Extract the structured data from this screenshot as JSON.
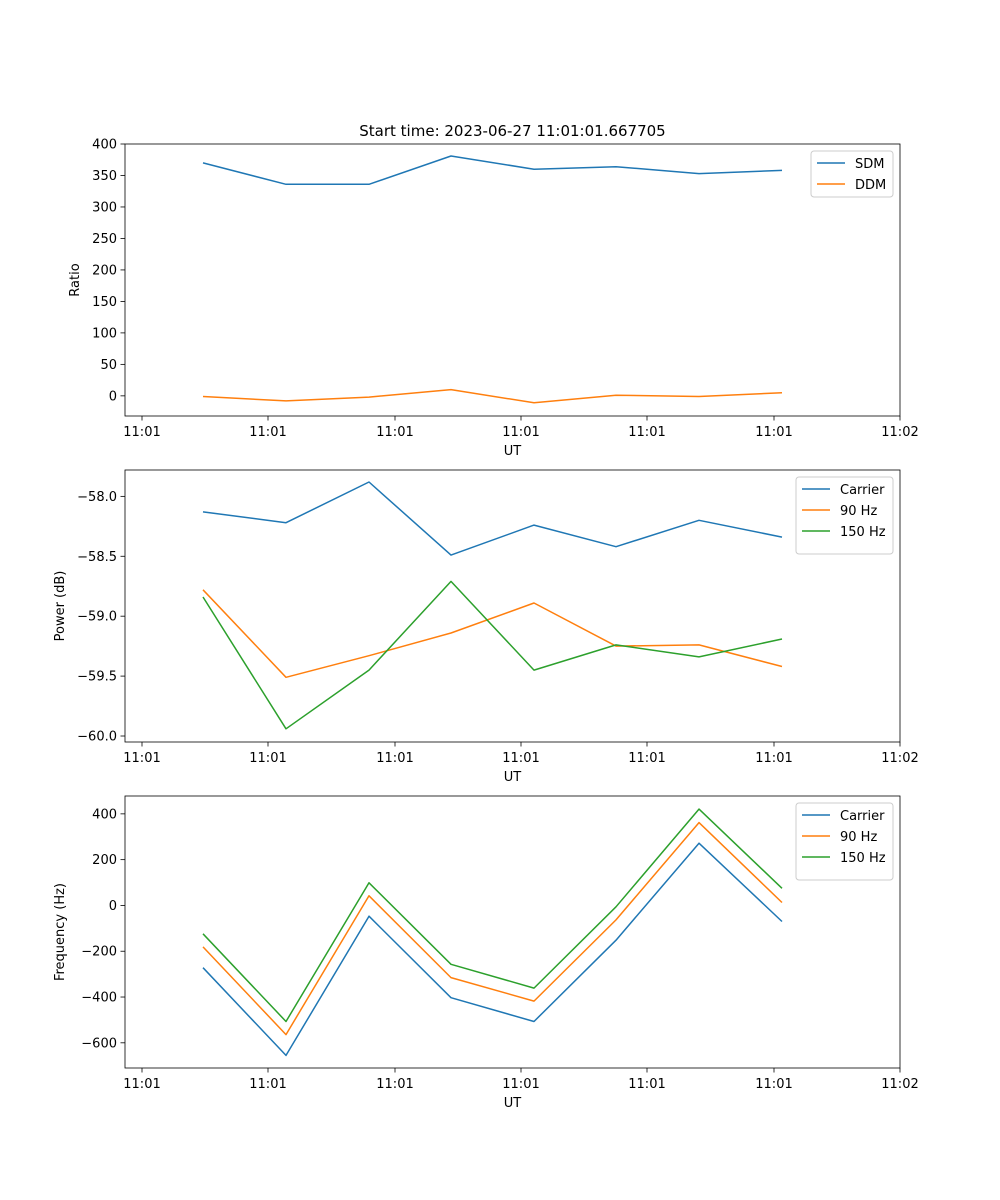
{
  "figure_title": "Start time: 2023-06-27 11:01:01.667705",
  "colors": {
    "blue": "#1f77b4",
    "orange": "#ff7f0e",
    "green": "#2ca02c"
  },
  "chart_data": [
    {
      "type": "line",
      "ylabel": "Ratio",
      "xlabel": "UT",
      "xtick_labels": [
        "11:01",
        "11:01",
        "11:01",
        "11:01",
        "11:01",
        "11:01",
        "11:02"
      ],
      "ytick_labels": [
        "0",
        "50",
        "100",
        "150",
        "200",
        "250",
        "300",
        "350",
        "400"
      ],
      "ylim": [
        -32,
        400
      ],
      "legend_position": "upper right",
      "series": [
        {
          "name": "SDM",
          "color": "#1f77b4",
          "values": [
            370,
            336,
            336,
            381,
            360,
            364,
            353,
            358
          ]
        },
        {
          "name": "DDM",
          "color": "#ff7f0e",
          "values": [
            -1,
            -8,
            -2,
            10,
            -11,
            1,
            -1,
            5
          ]
        }
      ]
    },
    {
      "type": "line",
      "ylabel": "Power (dB)",
      "xlabel": "UT",
      "xtick_labels": [
        "11:01",
        "11:01",
        "11:01",
        "11:01",
        "11:01",
        "11:01",
        "11:02"
      ],
      "ytick_labels": [
        "−60.0",
        "−59.5",
        "−59.0",
        "−58.5",
        "−58.0"
      ],
      "ylim": [
        -60.05,
        -57.78
      ],
      "legend_position": "upper right",
      "series": [
        {
          "name": "Carrier",
          "color": "#1f77b4",
          "values": [
            -58.13,
            -58.22,
            -57.88,
            -58.49,
            -58.24,
            -58.42,
            -58.2,
            -58.34
          ]
        },
        {
          "name": "90 Hz",
          "color": "#ff7f0e",
          "values": [
            -58.78,
            -59.51,
            -59.33,
            -59.14,
            -58.89,
            -59.25,
            -59.24,
            -59.42
          ]
        },
        {
          "name": "150 Hz",
          "color": "#2ca02c",
          "values": [
            -58.84,
            -59.94,
            -59.45,
            -58.71,
            -59.45,
            -59.24,
            -59.34,
            -59.19
          ]
        }
      ]
    },
    {
      "type": "line",
      "ylabel": "Frequency (Hz)",
      "xlabel": "UT",
      "xtick_labels": [
        "11:01",
        "11:01",
        "11:01",
        "11:01",
        "11:01",
        "11:01",
        "11:02"
      ],
      "ytick_labels": [
        "−600",
        "−400",
        "−200",
        "0",
        "200",
        "400"
      ],
      "ylim": [
        -710,
        478
      ],
      "legend_position": "upper right",
      "series": [
        {
          "name": "Carrier",
          "color": "#1f77b4",
          "values": [
            -272,
            -655,
            -47,
            -403,
            -507,
            -152,
            272,
            -70
          ]
        },
        {
          "name": "90 Hz",
          "color": "#ff7f0e",
          "values": [
            -181,
            -564,
            42,
            -315,
            -418,
            -63,
            362,
            13
          ]
        },
        {
          "name": "150 Hz",
          "color": "#2ca02c",
          "values": [
            -124,
            -507,
            99,
            -257,
            -361,
            -6,
            421,
            75
          ]
        }
      ]
    }
  ]
}
